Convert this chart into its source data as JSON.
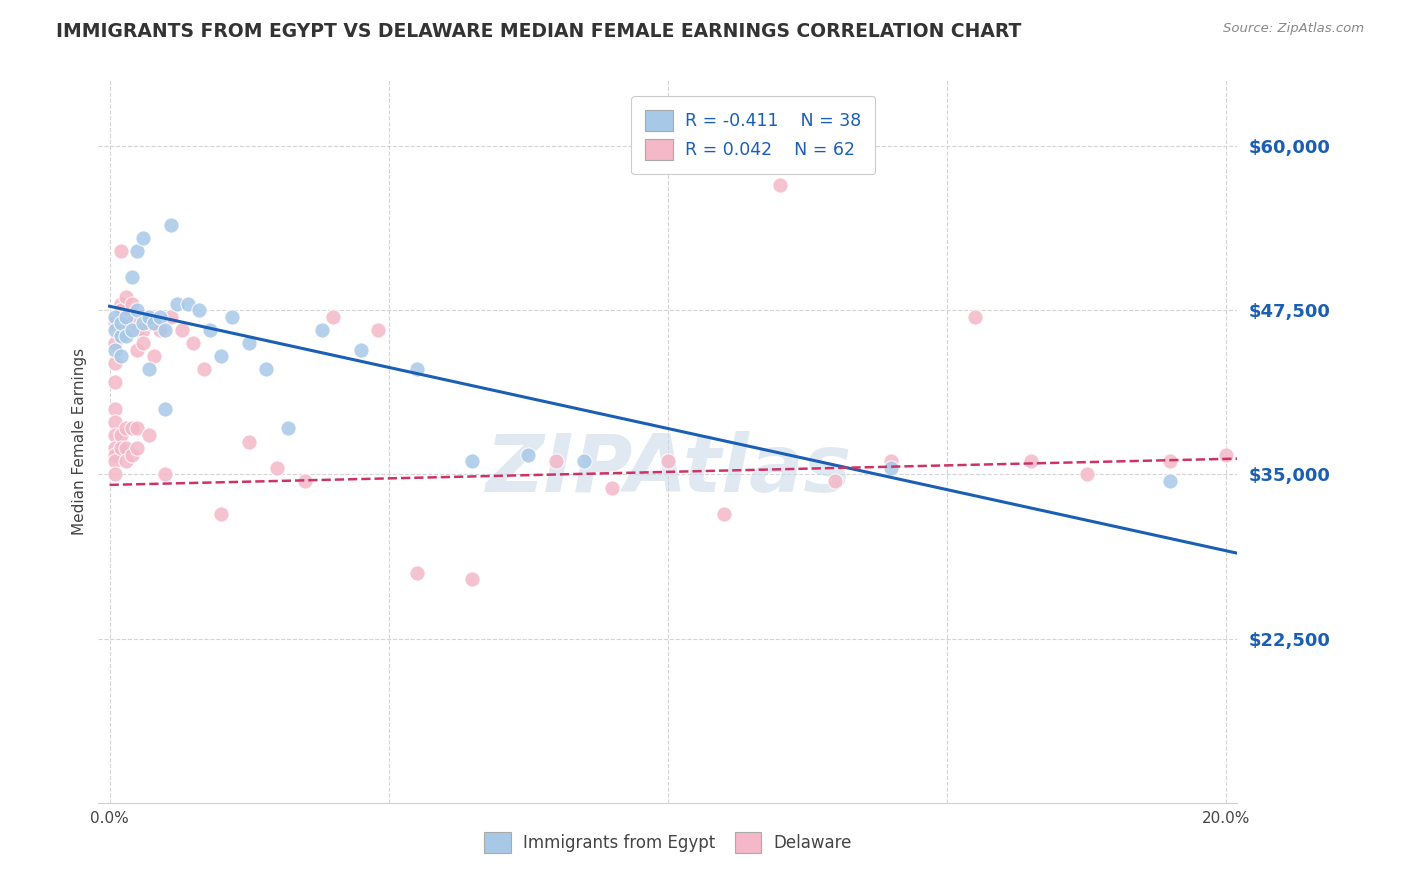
{
  "title": "IMMIGRANTS FROM EGYPT VS DELAWARE MEDIAN FEMALE EARNINGS CORRELATION CHART",
  "source": "Source: ZipAtlas.com",
  "ylabel": "Median Female Earnings",
  "ytick_labels": [
    "$22,500",
    "$35,000",
    "$47,500",
    "$60,000"
  ],
  "ytick_values": [
    22500,
    35000,
    47500,
    60000
  ],
  "ymin": 10000,
  "ymax": 65000,
  "xmin": -0.002,
  "xmax": 0.202,
  "legend_r1": "R = -0.411",
  "legend_n1": "N = 38",
  "legend_r2": "R = 0.042",
  "legend_n2": "N = 62",
  "legend_label1": "Immigrants from Egypt",
  "legend_label2": "Delaware",
  "blue_color": "#a8c8e8",
  "pink_color": "#f4b8c8",
  "line_blue": "#1a5fb4",
  "line_pink": "#cc3366",
  "watermark": "ZIPAtlas",
  "blue_scatter_x": [
    0.001,
    0.001,
    0.001,
    0.002,
    0.002,
    0.002,
    0.003,
    0.003,
    0.004,
    0.004,
    0.005,
    0.005,
    0.006,
    0.006,
    0.007,
    0.007,
    0.008,
    0.009,
    0.01,
    0.01,
    0.011,
    0.012,
    0.014,
    0.016,
    0.018,
    0.02,
    0.022,
    0.025,
    0.028,
    0.032,
    0.038,
    0.045,
    0.055,
    0.065,
    0.075,
    0.085,
    0.14,
    0.19
  ],
  "blue_scatter_y": [
    47000,
    46000,
    44500,
    45500,
    46500,
    44000,
    47000,
    45500,
    50000,
    46000,
    52000,
    47500,
    53000,
    46500,
    43000,
    47000,
    46500,
    47000,
    46000,
    40000,
    54000,
    48000,
    48000,
    47500,
    46000,
    44000,
    47000,
    45000,
    43000,
    38500,
    46000,
    44500,
    43000,
    36000,
    36500,
    36000,
    35500,
    34500
  ],
  "pink_scatter_x": [
    0.001,
    0.001,
    0.001,
    0.001,
    0.001,
    0.001,
    0.001,
    0.001,
    0.001,
    0.001,
    0.001,
    0.002,
    0.002,
    0.002,
    0.002,
    0.002,
    0.002,
    0.003,
    0.003,
    0.003,
    0.003,
    0.003,
    0.003,
    0.004,
    0.004,
    0.004,
    0.004,
    0.005,
    0.005,
    0.005,
    0.005,
    0.006,
    0.006,
    0.007,
    0.007,
    0.008,
    0.009,
    0.01,
    0.011,
    0.013,
    0.015,
    0.017,
    0.02,
    0.025,
    0.03,
    0.035,
    0.04,
    0.048,
    0.055,
    0.065,
    0.08,
    0.09,
    0.1,
    0.11,
    0.12,
    0.13,
    0.14,
    0.155,
    0.165,
    0.175,
    0.19,
    0.2
  ],
  "pink_scatter_y": [
    46500,
    45000,
    43500,
    42000,
    40000,
    39000,
    38000,
    37000,
    36500,
    36000,
    35000,
    52000,
    48000,
    47500,
    46000,
    38000,
    37000,
    48500,
    47000,
    46500,
    38500,
    37000,
    36000,
    48000,
    46500,
    38500,
    36500,
    46000,
    44500,
    38500,
    37000,
    46000,
    45000,
    46500,
    38000,
    44000,
    46000,
    35000,
    47000,
    46000,
    45000,
    43000,
    32000,
    37500,
    35500,
    34500,
    47000,
    46000,
    27500,
    27000,
    36000,
    34000,
    36000,
    32000,
    57000,
    34500,
    36000,
    47000,
    36000,
    35000,
    36000,
    36500
  ],
  "blue_line_x": [
    0.0,
    0.202
  ],
  "blue_line_y": [
    47800,
    29000
  ],
  "pink_line_x": [
    0.0,
    0.202
  ],
  "pink_line_y": [
    34200,
    36200
  ],
  "grid_color": "#d0d0d0",
  "title_color": "#333333",
  "title_fontsize": 13.5,
  "axis_label_fontsize": 11,
  "tick_label_color_blue": "#1a5fb4",
  "tick_label_color_dark": "#444444",
  "background_color": "#ffffff"
}
